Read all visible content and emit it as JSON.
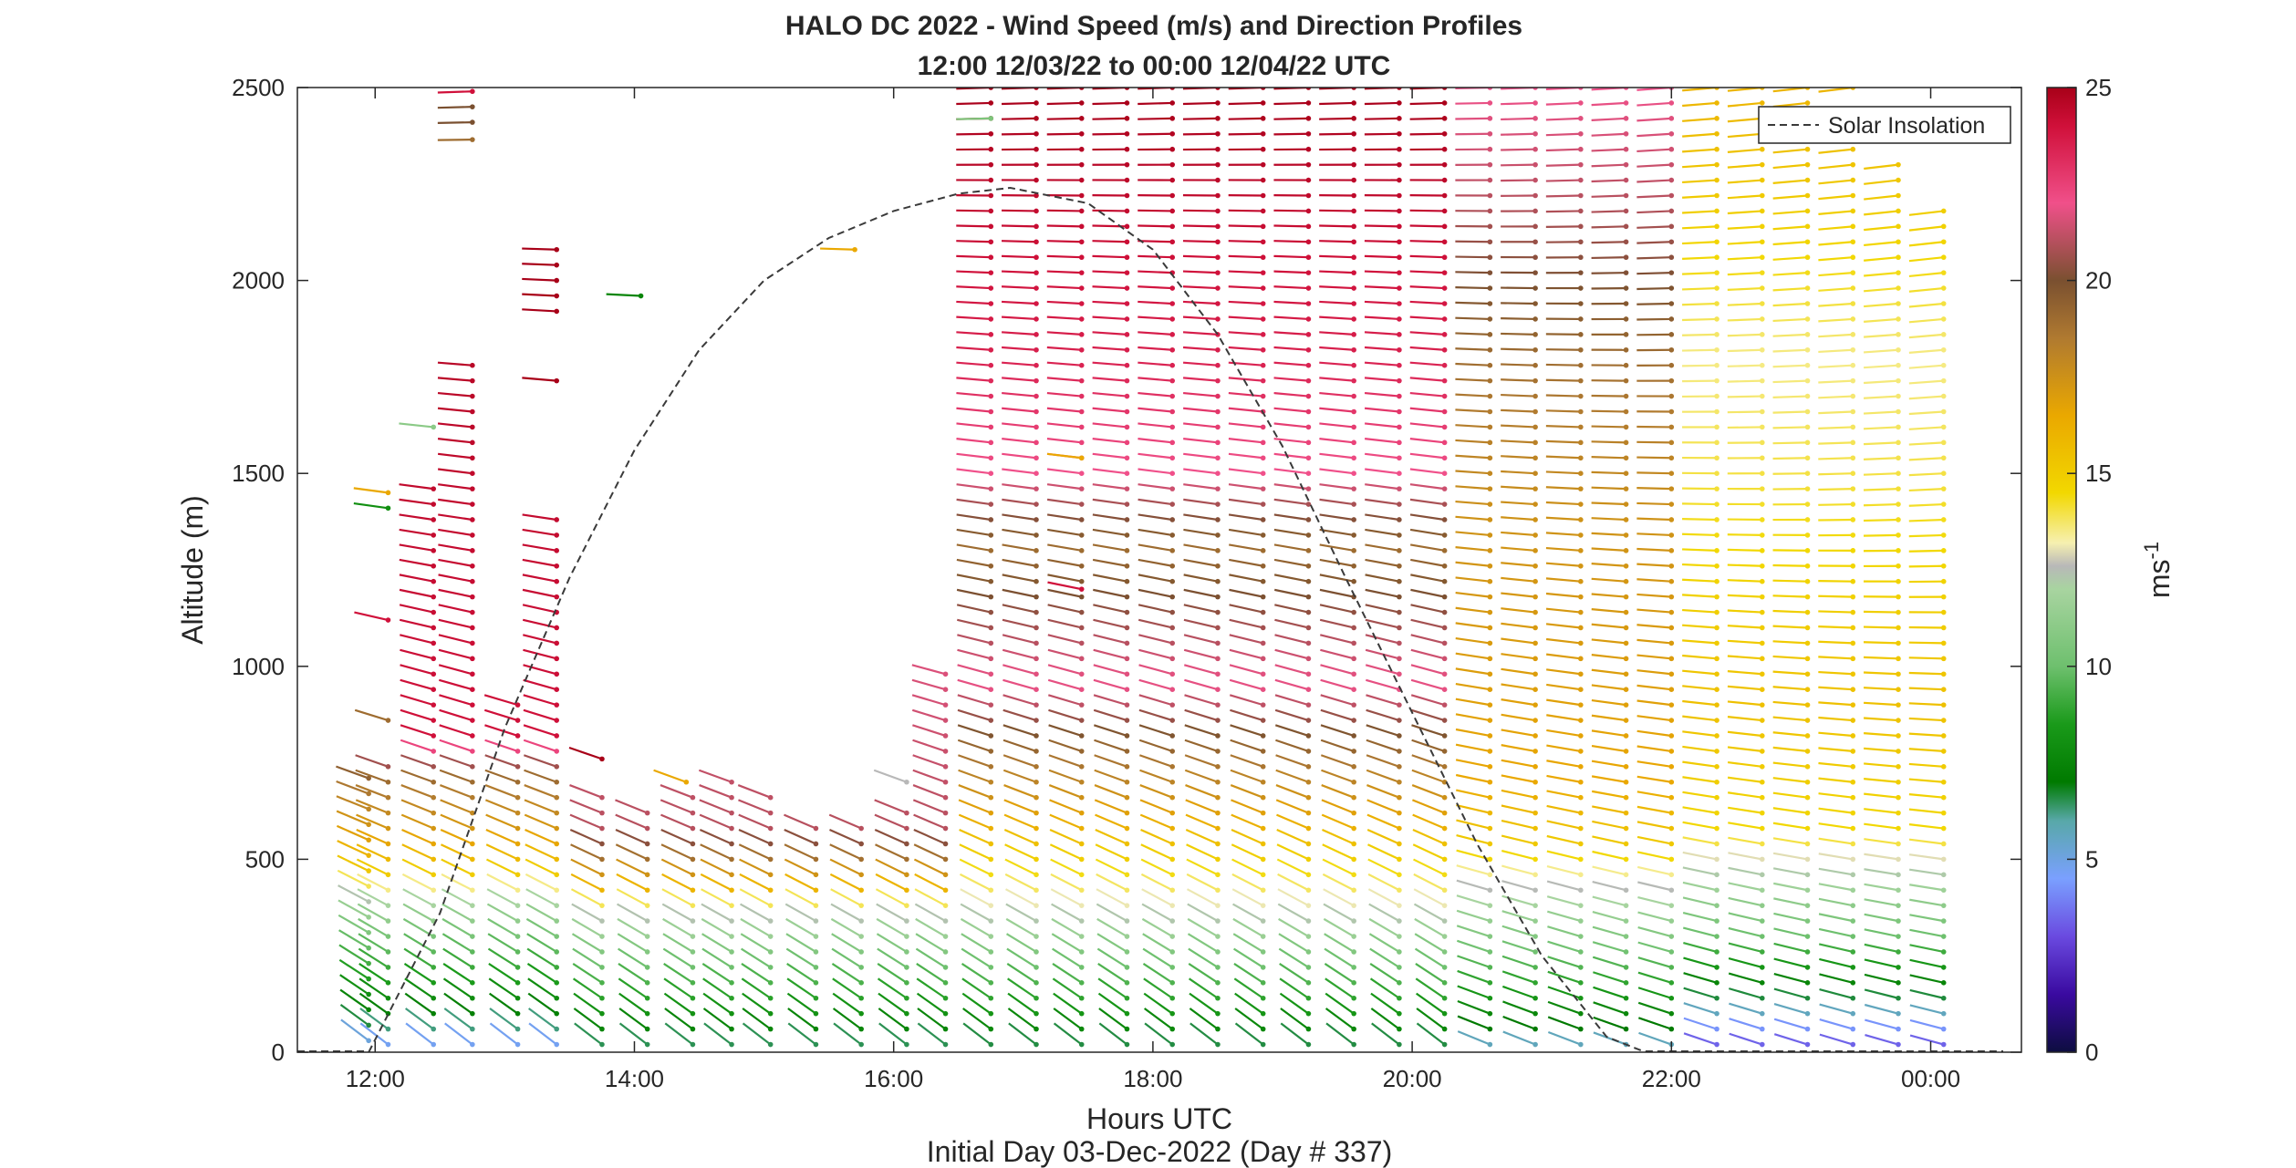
{
  "chart_data": {
    "type": "wind-barb profile",
    "title": "HALO DC 2022 - Wind Speed (m/s) and Direction Profiles",
    "subtitle": "12:00 12/03/22 to 00:00 12/04/22  UTC",
    "xlabel": "Hours UTC",
    "ylabel": "Altitude (m)",
    "footnote": "Initial Day 03-Dec-2022 (Day # 337)",
    "xlim": [
      11.4,
      24.7
    ],
    "ylim": [
      0,
      2500
    ],
    "x_ticks": [
      {
        "value": 12,
        "label": "12:00"
      },
      {
        "value": 14,
        "label": "14:00"
      },
      {
        "value": 16,
        "label": "16:00"
      },
      {
        "value": 18,
        "label": "18:00"
      },
      {
        "value": 20,
        "label": "20:00"
      },
      {
        "value": 22,
        "label": "22:00"
      },
      {
        "value": 24,
        "label": "00:00"
      }
    ],
    "y_ticks": [
      {
        "value": 0,
        "label": "0"
      },
      {
        "value": 500,
        "label": "500"
      },
      {
        "value": 1000,
        "label": "1000"
      },
      {
        "value": 1500,
        "label": "1500"
      },
      {
        "value": 2000,
        "label": "2000"
      },
      {
        "value": 2500,
        "label": "2500"
      }
    ],
    "colorbar": {
      "label_base": "ms",
      "label_exp": "-1",
      "range": [
        0,
        25
      ],
      "ticks": [
        {
          "value": 0,
          "label": "0"
        },
        {
          "value": 5,
          "label": "5"
        },
        {
          "value": 10,
          "label": "10"
        },
        {
          "value": 15,
          "label": "15"
        },
        {
          "value": 20,
          "label": "20"
        },
        {
          "value": 25,
          "label": "25"
        }
      ],
      "stops": [
        {
          "v": 0,
          "color": "#0d0d40"
        },
        {
          "v": 1.5,
          "color": "#3a0aa0"
        },
        {
          "v": 3,
          "color": "#6a4ae0"
        },
        {
          "v": 4.5,
          "color": "#7aa0ff"
        },
        {
          "v": 6,
          "color": "#58a8a8"
        },
        {
          "v": 7,
          "color": "#007a00"
        },
        {
          "v": 8.5,
          "color": "#1a9a1a"
        },
        {
          "v": 10,
          "color": "#6ec06e"
        },
        {
          "v": 12,
          "color": "#a8d4a0"
        },
        {
          "v": 12.6,
          "color": "#b8b8b8"
        },
        {
          "v": 13.2,
          "color": "#f6f0b0"
        },
        {
          "v": 14.5,
          "color": "#f2d800"
        },
        {
          "v": 16.5,
          "color": "#eaa800"
        },
        {
          "v": 18.5,
          "color": "#b07a30"
        },
        {
          "v": 20,
          "color": "#7a5030"
        },
        {
          "v": 22,
          "color": "#f0508a"
        },
        {
          "v": 24,
          "color": "#d0103a"
        },
        {
          "v": 25,
          "color": "#a80018"
        }
      ]
    },
    "legend": {
      "label": "Solar Insolation",
      "style": "dashed",
      "placement": "top-right"
    },
    "solar_insolation": {
      "x": [
        11.95,
        12.5,
        13.0,
        13.5,
        14.0,
        14.5,
        15.0,
        15.5,
        16.0,
        16.5,
        16.9,
        17.5,
        18.0,
        18.5,
        19.0,
        19.5,
        20.0,
        20.5,
        21.0,
        21.5,
        21.8
      ],
      "y": [
        0,
        360,
        840,
        1230,
        1560,
        1820,
        2000,
        2110,
        2180,
        2225,
        2240,
        2200,
        2080,
        1860,
        1570,
        1220,
        880,
        540,
        250,
        40,
        0
      ]
    },
    "speed_fields": [
      {
        "x_from": 11.95,
        "x_to": 13.45,
        "alt_low": [
          [
            0,
            4
          ],
          [
            80,
            7
          ],
          [
            280,
            10
          ],
          [
            380,
            12
          ],
          [
            460,
            15
          ],
          [
            560,
            17
          ],
          [
            700,
            19
          ],
          [
            820,
            24
          ],
          [
            2500,
            25
          ]
        ]
      },
      {
        "x_from": 13.45,
        "x_to": 16.7,
        "alt_low": [
          [
            0,
            6
          ],
          [
            60,
            7.5
          ],
          [
            250,
            10.5
          ],
          [
            360,
            12.8
          ],
          [
            420,
            16
          ],
          [
            560,
            21
          ],
          [
            2500,
            24
          ]
        ]
      },
      {
        "x_from": 16.7,
        "x_to": 20.5,
        "alt_low": [
          [
            0,
            6
          ],
          [
            50,
            7.5
          ],
          [
            250,
            10.5
          ],
          [
            400,
            13.5
          ],
          [
            540,
            15.5
          ],
          [
            660,
            17.5
          ],
          [
            800,
            19.5
          ],
          [
            950,
            22
          ],
          [
            1300,
            19
          ],
          [
            1500,
            22
          ],
          [
            1800,
            23.5
          ],
          [
            2500,
            25
          ]
        ]
      },
      {
        "x_from": 20.5,
        "x_to": 22.2,
        "alt_low": [
          [
            0,
            5
          ],
          [
            60,
            7
          ],
          [
            250,
            10
          ],
          [
            430,
            12.7
          ],
          [
            520,
            15
          ],
          [
            700,
            16.5
          ],
          [
            1000,
            17
          ],
          [
            1400,
            17.5
          ],
          [
            1800,
            19
          ],
          [
            2200,
            21
          ],
          [
            2500,
            22
          ]
        ]
      },
      {
        "x_from": 22.2,
        "x_to": 24.1,
        "alt_low": [
          [
            0,
            3
          ],
          [
            70,
            4.5
          ],
          [
            110,
            6
          ],
          [
            180,
            7.5
          ],
          [
            300,
            10
          ],
          [
            480,
            12.5
          ],
          [
            560,
            14.5
          ],
          [
            900,
            15.5
          ],
          [
            1500,
            14
          ],
          [
            1800,
            13.5
          ],
          [
            2200,
            15
          ],
          [
            2500,
            16
          ]
        ]
      }
    ],
    "profiles": [
      {
        "t": 11.95,
        "z_min": 30,
        "z_max": 740
      },
      {
        "t": 12.1,
        "z_min": 20,
        "z_max": 760
      },
      {
        "t": 12.45,
        "z_min": 20,
        "z_max": 1460
      },
      {
        "t": 12.75,
        "z_min": 20,
        "z_max": 1780
      },
      {
        "t": 13.1,
        "z_min": 20,
        "z_max": 900
      },
      {
        "t": 13.4,
        "z_min": 20,
        "z_max": 1400
      },
      {
        "t": 13.75,
        "z_min": 20,
        "z_max": 660
      },
      {
        "t": 14.1,
        "z_min": 20,
        "z_max": 640
      },
      {
        "t": 14.45,
        "z_min": 20,
        "z_max": 670
      },
      {
        "t": 14.75,
        "z_min": 20,
        "z_max": 700
      },
      {
        "t": 15.05,
        "z_min": 20,
        "z_max": 660
      },
      {
        "t": 15.4,
        "z_min": 20,
        "z_max": 590
      },
      {
        "t": 15.75,
        "z_min": 20,
        "z_max": 590
      },
      {
        "t": 16.1,
        "z_min": 20,
        "z_max": 640
      },
      {
        "t": 16.4,
        "z_min": 20,
        "z_max": 1000
      },
      {
        "t": 16.75,
        "z_min": 20,
        "z_max": 2500
      },
      {
        "t": 17.1,
        "z_min": 20,
        "z_max": 2500
      },
      {
        "t": 17.45,
        "z_min": 20,
        "z_max": 2500
      },
      {
        "t": 17.8,
        "z_min": 20,
        "z_max": 2500
      },
      {
        "t": 18.15,
        "z_min": 20,
        "z_max": 2500
      },
      {
        "t": 18.5,
        "z_min": 20,
        "z_max": 2500
      },
      {
        "t": 18.85,
        "z_min": 20,
        "z_max": 2500
      },
      {
        "t": 19.2,
        "z_min": 20,
        "z_max": 2500
      },
      {
        "t": 19.55,
        "z_min": 20,
        "z_max": 2500
      },
      {
        "t": 19.9,
        "z_min": 20,
        "z_max": 2500
      },
      {
        "t": 20.25,
        "z_min": 20,
        "z_max": 2500
      },
      {
        "t": 20.6,
        "z_min": 20,
        "z_max": 2500
      },
      {
        "t": 20.95,
        "z_min": 20,
        "z_max": 2500
      },
      {
        "t": 21.3,
        "z_min": 20,
        "z_max": 2500
      },
      {
        "t": 21.65,
        "z_min": 20,
        "z_max": 2500
      },
      {
        "t": 22.0,
        "z_min": 20,
        "z_max": 2500
      },
      {
        "t": 22.35,
        "z_min": 20,
        "z_max": 2500
      },
      {
        "t": 22.7,
        "z_min": 20,
        "z_max": 2500
      },
      {
        "t": 23.05,
        "z_min": 20,
        "z_max": 2500
      },
      {
        "t": 23.4,
        "z_min": 20,
        "z_max": 2450
      },
      {
        "t": 23.75,
        "z_min": 20,
        "z_max": 2300
      },
      {
        "t": 24.1,
        "z_min": 20,
        "z_max": 2180
      }
    ],
    "isolated_points": [
      {
        "t": 12.75,
        "z": 2490,
        "spd": 24
      },
      {
        "t": 12.75,
        "z": 2450,
        "spd": 20
      },
      {
        "t": 12.75,
        "z": 2410,
        "spd": 20
      },
      {
        "t": 12.75,
        "z": 2365,
        "spd": 19
      },
      {
        "t": 13.4,
        "z": 2080,
        "spd": 25
      },
      {
        "t": 13.4,
        "z": 2040,
        "spd": 25
      },
      {
        "t": 13.4,
        "z": 2000,
        "spd": 25
      },
      {
        "t": 13.4,
        "z": 1960,
        "spd": 25
      },
      {
        "t": 13.4,
        "z": 1920,
        "spd": 25
      },
      {
        "t": 13.4,
        "z": 1740,
        "spd": 25
      },
      {
        "t": 14.05,
        "z": 1960,
        "spd": 7.5
      },
      {
        "t": 15.7,
        "z": 2080,
        "spd": 16.5
      },
      {
        "t": 12.1,
        "z": 1450,
        "spd": 16.5
      },
      {
        "t": 12.1,
        "z": 1410,
        "spd": 8
      },
      {
        "t": 12.1,
        "z": 1120,
        "spd": 24
      },
      {
        "t": 12.1,
        "z": 860,
        "spd": 19
      },
      {
        "t": 12.45,
        "z": 1620,
        "spd": 11
      },
      {
        "t": 13.75,
        "z": 760,
        "spd": 25
      },
      {
        "t": 14.4,
        "z": 700,
        "spd": 16.5
      },
      {
        "t": 16.1,
        "z": 700,
        "spd": 12.6
      },
      {
        "t": 16.75,
        "z": 2420,
        "spd": 10.5
      },
      {
        "t": 17.45,
        "z": 1540,
        "spd": 16.5
      },
      {
        "t": 17.45,
        "z": 1200,
        "spd": 24
      },
      {
        "t": 23.4,
        "z": 2500,
        "spd": 16
      }
    ]
  }
}
